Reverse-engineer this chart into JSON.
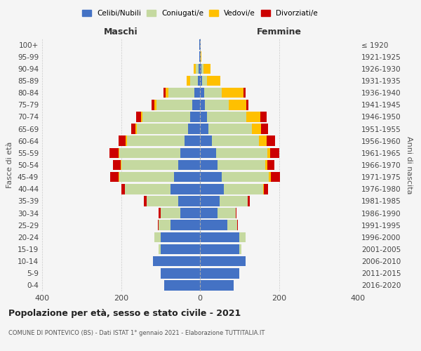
{
  "age_groups": [
    "0-4",
    "5-9",
    "10-14",
    "15-19",
    "20-24",
    "25-29",
    "30-34",
    "35-39",
    "40-44",
    "45-49",
    "50-54",
    "55-59",
    "60-64",
    "65-69",
    "70-74",
    "75-79",
    "80-84",
    "85-89",
    "90-94",
    "95-99",
    "100+"
  ],
  "birth_years": [
    "2016-2020",
    "2011-2015",
    "2006-2010",
    "2001-2005",
    "1996-2000",
    "1991-1995",
    "1986-1990",
    "1981-1985",
    "1976-1980",
    "1971-1975",
    "1966-1970",
    "1961-1965",
    "1956-1960",
    "1951-1955",
    "1946-1950",
    "1941-1945",
    "1936-1940",
    "1931-1935",
    "1926-1930",
    "1921-1925",
    "≤ 1920"
  ],
  "males": {
    "celibi": [
      90,
      100,
      120,
      100,
      100,
      75,
      50,
      55,
      75,
      65,
      55,
      50,
      40,
      30,
      25,
      20,
      15,
      5,
      3,
      1,
      1
    ],
    "coniugati": [
      0,
      0,
      0,
      5,
      15,
      30,
      50,
      80,
      115,
      140,
      145,
      155,
      145,
      130,
      120,
      90,
      65,
      20,
      8,
      0,
      0
    ],
    "vedovi": [
      0,
      0,
      0,
      0,
      0,
      0,
      0,
      0,
      0,
      1,
      1,
      2,
      3,
      3,
      5,
      5,
      8,
      8,
      5,
      0,
      0
    ],
    "divorziati": [
      0,
      0,
      0,
      0,
      0,
      2,
      5,
      8,
      10,
      22,
      20,
      22,
      18,
      12,
      12,
      8,
      5,
      0,
      0,
      0,
      0
    ]
  },
  "females": {
    "nubili": [
      85,
      100,
      115,
      100,
      100,
      70,
      45,
      50,
      60,
      55,
      45,
      40,
      30,
      22,
      18,
      12,
      10,
      5,
      3,
      2,
      1
    ],
    "coniugate": [
      0,
      0,
      0,
      5,
      15,
      25,
      45,
      70,
      100,
      120,
      120,
      130,
      120,
      110,
      100,
      60,
      45,
      12,
      5,
      0,
      0
    ],
    "vedove": [
      0,
      0,
      0,
      0,
      0,
      0,
      0,
      1,
      2,
      5,
      5,
      8,
      18,
      22,
      35,
      45,
      55,
      35,
      18,
      2,
      0
    ],
    "divorziate": [
      0,
      0,
      0,
      0,
      0,
      1,
      3,
      5,
      10,
      22,
      18,
      22,
      22,
      18,
      15,
      5,
      5,
      0,
      0,
      0,
      0
    ]
  },
  "colors": {
    "celibi": "#4472c4",
    "coniugati": "#c5d9a0",
    "vedovi": "#ffc000",
    "divorziati": "#cc0000"
  },
  "legend_labels": [
    "Celibi/Nubili",
    "Coniugati/e",
    "Vedovi/e",
    "Divorziati/e"
  ],
  "xlim": 400,
  "title": "Popolazione per età, sesso e stato civile - 2021",
  "subtitle": "COMUNE DI PONTEVICO (BS) - Dati ISTAT 1° gennaio 2021 - Elaborazione TUTTITALIA.IT",
  "xlabel_left": "Maschi",
  "xlabel_right": "Femmine",
  "ylabel_left": "Fasce di età",
  "ylabel_right": "Anni di nascita",
  "bg_color": "#f5f5f5",
  "grid_color": "#cccccc"
}
